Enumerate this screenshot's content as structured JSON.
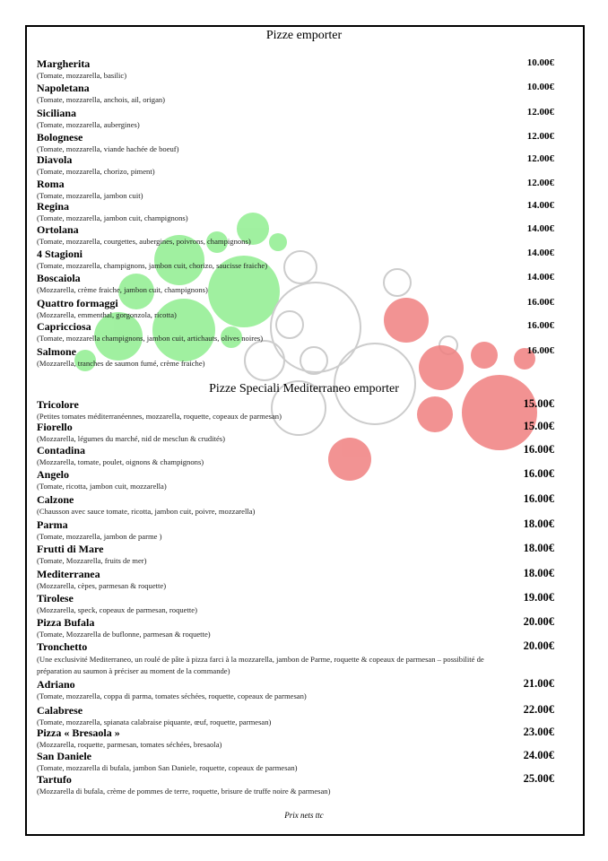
{
  "sections": [
    {
      "title": "Pizze emporter",
      "items": [
        {
          "name": "Margherita",
          "description": "(Tomate, mozzarella, basilic)",
          "price": "10.00€"
        },
        {
          "name": "Napoletana",
          "description": "(Tomate, mozzarella, anchois, ail, origan)",
          "price": "10.00€"
        },
        {
          "name": "Siciliana",
          "description": "(Tomate, mozzarella, aubergines)",
          "price": "12.00€"
        },
        {
          "name": "Bolognese",
          "description": "(Tomate, mozzarella, viande hachée de boeuf)",
          "price": "12.00€"
        },
        {
          "name": "Diavola",
          "description": "(Tomate, mozzarella, chorizo, piment)",
          "price": "12.00€"
        },
        {
          "name": "Roma",
          "description": "(Tomate, mozzarella, jambon cuit)",
          "price": "12.00€"
        },
        {
          "name": "Regina",
          "description": "(Tomate, mozzarella, jambon cuit, champignons)",
          "price": "14.00€"
        },
        {
          "name": "Ortolana",
          "description": "(Tomate, mozzarella, courgettes, aubergines, poivrons, champignons)",
          "price": "14.00€"
        },
        {
          "name": "4 Stagioni",
          "description": "(Tomate, mozzarella, champignons, jambon cuit, chorizo, saucisse fraiche)",
          "price": "14.00€"
        },
        {
          "name": "Boscaiola",
          "description": "(Mozzarella, crème fraiche, jambon cuit, champignons)",
          "price": "14.00€"
        },
        {
          "name": "Quattro formaggi",
          "description": "(Mozzarella, emmenthal, gorgonzola, ricotta)",
          "price": "16.00€"
        },
        {
          "name": "Capricciosa",
          "description": "(Tomate, mozzarella champignons, jambon cuit, artichauts, olives noires)",
          "price": "16.00€"
        },
        {
          "name": "Salmone",
          "description": "(Mozzarella, tranches de saumon fumé, crème fraiche)",
          "price": "16.00€"
        }
      ]
    },
    {
      "title": "Pizze Speciali  Mediterraneo emporter",
      "items": [
        {
          "name": "Tricolore",
          "description": "(Petites tomates méditerranéennes, mozzarella, roquette, copeaux de parmesan)",
          "price": "15.00€"
        },
        {
          "name": "Fiorello",
          "description": "(Mozzarella, légumes du marché, nid de mesclun & crudités)",
          "price": "15.00€"
        },
        {
          "name": "Contadina",
          "description": "(Mozzarella, tomate, poulet, oignons & champignons)",
          "price": "16.00€"
        },
        {
          "name": "Angelo",
          "description": "(Tomate, ricotta, jambon cuit, mozzarella)",
          "price": "16.00€"
        },
        {
          "name": "Calzone",
          "description": "(Chausson avec sauce tomate, ricotta, jambon cuit, poivre, mozzarella)",
          "price": "16.00€"
        },
        {
          "name": "Parma",
          "description": "(Tomate, mozzarella, jambon de parme )",
          "price": "18.00€"
        },
        {
          "name": "Frutti di Mare",
          "description": "(Tomate, Mozzarella, fruits de mer)",
          "price": "18.00€"
        },
        {
          "name": "Mediterranea",
          "description": "(Mozzarella, cèpes, parmesan & roquette)",
          "price": "18.00€"
        },
        {
          "name": "Tirolese",
          "description": "(Mozzarella, speck, copeaux de parmesan, roquette)",
          "price": "19.00€"
        },
        {
          "name": "Pizza Bufala",
          "description": "(Tomate, Mozzarella de buflonne, parmesan & roquette)",
          "price": "20.00€"
        },
        {
          "name": "Tronchetto",
          "description": "(Une exclusivité Mediterraneo, un roulé de pâte à pizza farci à la mozzarella, jambon de Parme, roquette & copeaux de parmesan – possibilité de préparation au saumon à préciser au moment de la commande)",
          "price": "20.00€"
        },
        {
          "name": "Adriano",
          "description": "(Tomate, mozzarella, coppa di parma, tomates séchées, roquette, copeaux de parmesan)",
          "price": "21.00€"
        },
        {
          "name": "Calabrese",
          "description": "(Tomate, mozzarella, spianata calabraise piquante, œuf, roquette, parmesan)",
          "price": "22.00€"
        },
        {
          "name": "Pizza « Bresaola »",
          "description": "(Mozzarella, roquette, parmesan, tomates séchées, bresaola)",
          "price": "23.00€"
        },
        {
          "name": "San Daniele",
          "description": "(Tomate, mozzarella di bufala, jambon San Daniele, roquette, copeaux de parmesan)",
          "price": "24.00€"
        },
        {
          "name": "Tartufo",
          "description": "(Mozzarella di bufala, crème de pommes de terre, roquette, brisure de truffe noire & parmesan)",
          "price": "25.00€"
        }
      ]
    }
  ],
  "footer": "Prix nets ttc"
}
